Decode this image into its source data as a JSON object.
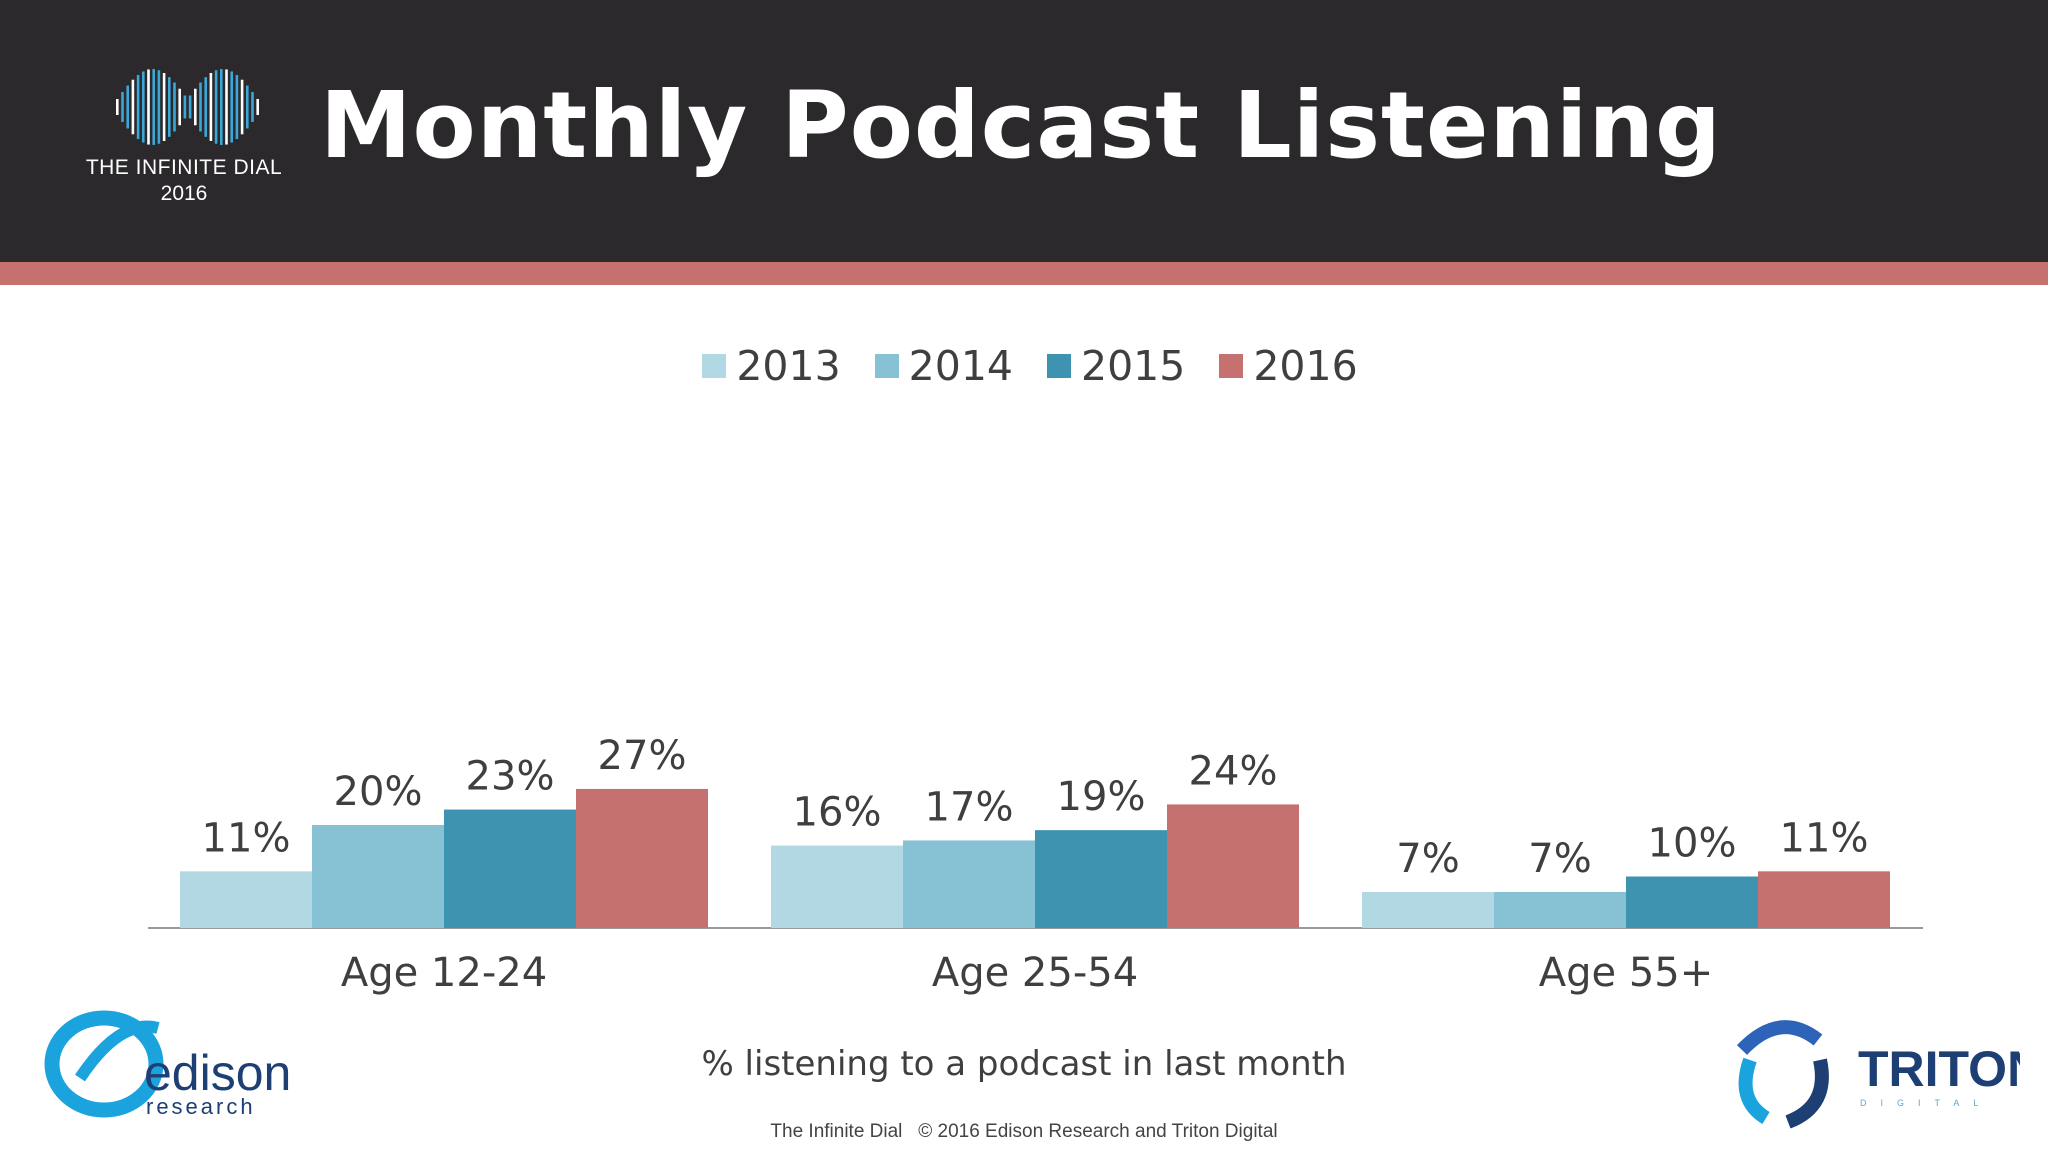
{
  "header": {
    "title": "Monthly Podcast Listening",
    "brand_name": "THE INFINITE DIAL",
    "brand_year": "2016"
  },
  "colors": {
    "header_bg": "#2b292b",
    "accent": "#c47170",
    "series_2013": "#b2d8e4",
    "series_2014": "#86c1d4",
    "series_2015": "#3d93b0",
    "series_2016": "#c47170"
  },
  "chart_data": {
    "type": "bar",
    "title": "Monthly Podcast Listening",
    "categories": [
      "Age  12-24",
      "Age  25-54",
      "Age  55+"
    ],
    "series": [
      {
        "name": "2013",
        "values": [
          11,
          16,
          7
        ],
        "labels": [
          "11%",
          "16%",
          "7%"
        ]
      },
      {
        "name": "2014",
        "values": [
          20,
          17,
          7
        ],
        "labels": [
          "20%",
          "17%",
          "7%"
        ]
      },
      {
        "name": "2015",
        "values": [
          23,
          19,
          10
        ],
        "labels": [
          "23%",
          "19%",
          "10%"
        ]
      },
      {
        "name": "2016",
        "values": [
          27,
          24,
          11
        ],
        "labels": [
          "27%",
          "24%",
          "11%"
        ]
      }
    ],
    "xlabel": "% listening to a podcast in last month",
    "ylabel": "",
    "ylim": [
      0,
      100
    ],
    "legend_position": "top-center",
    "grid": false
  },
  "footer": {
    "caption": "% listening to a podcast in last month",
    "copyright": "The Infinite Dial   © 2016 Edison Research and Triton Digital"
  },
  "logos": {
    "edison_name": "edison",
    "edison_sub": "research",
    "triton_name": "TRITON",
    "triton_sub": "DIGITAL"
  }
}
